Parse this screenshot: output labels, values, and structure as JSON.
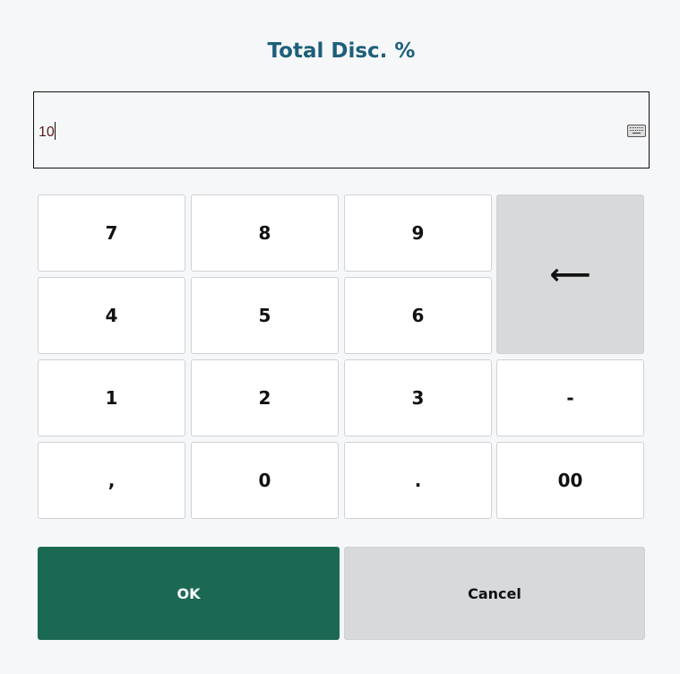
{
  "dialog": {
    "title": "Total Disc. %"
  },
  "input": {
    "value": "10",
    "keyboard_icon": "keyboard-icon"
  },
  "keypad": {
    "keys": [
      "7",
      "8",
      "9",
      "4",
      "5",
      "6",
      "1",
      "2",
      "3",
      ",",
      "0",
      ".",
      "-",
      "00"
    ],
    "backspace_icon": "left-arrow-icon",
    "backspace_glyph": "⟵"
  },
  "actions": {
    "ok": "OK",
    "cancel": "Cancel"
  },
  "colors": {
    "title": "#1d5f7a",
    "ok": "#1c6953",
    "gray_key": "#d7d9db"
  }
}
